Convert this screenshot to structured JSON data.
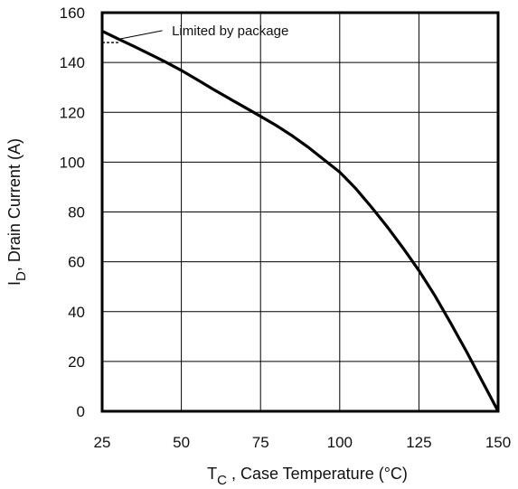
{
  "chart_data": {
    "type": "line",
    "xlabel_main": "T",
    "xlabel_sub": "C",
    "xlabel_rest": " , Case Temperature (°C)",
    "ylabel_main": "I",
    "ylabel_sub": "D",
    "ylabel_rest": ",  Drain Current (A)",
    "xlim": [
      25,
      150
    ],
    "ylim": [
      0,
      160
    ],
    "x_ticks": [
      25,
      50,
      75,
      100,
      125,
      150
    ],
    "y_ticks": [
      0,
      20,
      40,
      60,
      80,
      100,
      120,
      140,
      160
    ],
    "grid": true,
    "series": [
      {
        "x": [
          25,
          30,
          35,
          40,
          45,
          50,
          55,
          60,
          65,
          70,
          75,
          80,
          85,
          90,
          95,
          100,
          105,
          110,
          115,
          120,
          125,
          130,
          135,
          140,
          145,
          150
        ],
        "y": [
          152.6,
          149.5,
          146.5,
          143.4,
          140.2,
          136.8,
          133.1,
          129.3,
          125.6,
          122.0,
          118.4,
          114.7,
          110.6,
          106.0,
          101.0,
          96.0,
          89.5,
          82.0,
          74.0,
          65.5,
          56.5,
          46.5,
          35.5,
          24.0,
          12.0,
          0
        ]
      }
    ],
    "package_limit": 148,
    "annotation": "Limited by package"
  }
}
